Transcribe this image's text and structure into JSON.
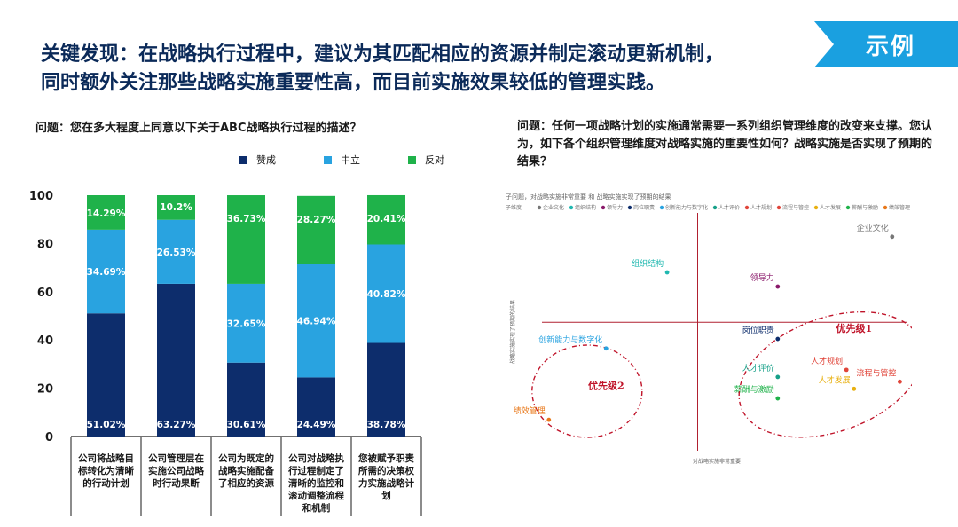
{
  "header": {
    "headline_line1": "关键发现：在战略执行过程中，建议为其匹配相应的资源并制定滚动更新机制，",
    "headline_line2": "同时额外关注那些战略实施重要性高，而目前实施效果较低的管理实践。",
    "badge": "示例",
    "badge_color": "#1aa0e0"
  },
  "left": {
    "question": "问题：您在多大程度上同意以下关于ABC战略执行过程的描述？"
  },
  "right": {
    "question": "问题：任何一项战略计划的实施通常需要一系列组织管理维度的改变来支撑。您认为，如下各个组织管理维度对战略实施的重要性如何？战略实施是否实现了预期的结果？"
  },
  "chart_data": [
    {
      "type": "bar",
      "stacked": true,
      "ylim": [
        0,
        100
      ],
      "yticks": [
        0,
        20,
        40,
        60,
        80,
        100
      ],
      "legend_position": "top",
      "categories": [
        [
          "公司将战略目",
          "标转化为清晰",
          "的行动计划"
        ],
        [
          "公司管理层在",
          "实施公司战略",
          "时行动果断"
        ],
        [
          "公司为既定的",
          "战略实施配备",
          "了相应的资源"
        ],
        [
          "公司对战略执",
          "行过程制定了",
          "清晰的监控和",
          "滚动调整流程",
          "和机制"
        ],
        [
          "您被赋予职责",
          "所需的决策权",
          "力实施战略计",
          "划"
        ]
      ],
      "series": [
        {
          "name": "赞成",
          "color": "#0d2d6c",
          "values": [
            51.02,
            63.27,
            30.61,
            24.49,
            38.78
          ],
          "labels": [
            "51.02%",
            "63.27%",
            "30.61%",
            "24.49%",
            "38.78%"
          ]
        },
        {
          "name": "中立",
          "color": "#29a3e0",
          "values": [
            34.69,
            26.53,
            32.65,
            46.94,
            40.82
          ],
          "labels": [
            "34.69%",
            "26.53%",
            "32.65%",
            "46.94%",
            "40.82%"
          ]
        },
        {
          "name": "反对",
          "color": "#1fb24a",
          "values": [
            14.29,
            10.2,
            36.73,
            28.27,
            20.41
          ],
          "labels": [
            "14.29%",
            "10.2%",
            "36.73%",
            "28.27%",
            "20.41%"
          ]
        }
      ]
    },
    {
      "type": "scatter",
      "title": "子问题，对战略实施非常重要 和 战略实施实现了预期的结果",
      "legend_prefix": "子维度",
      "xlabel": "对战略实施非常重要",
      "ylabel": "战略实施实现了预期的结果",
      "xlim": [
        0,
        10
      ],
      "ylim": [
        0,
        10
      ],
      "divider": {
        "x": 4.5,
        "y": 5.4
      },
      "points": [
        {
          "label": "企业文化",
          "x": 9.6,
          "y": 9.0,
          "color": "#777777"
        },
        {
          "label": "组织结构",
          "x": 3.7,
          "y": 7.5,
          "color": "#20b8b0"
        },
        {
          "label": "领导力",
          "x": 6.6,
          "y": 6.9,
          "color": "#8a1a6a"
        },
        {
          "label": "岗位职责",
          "x": 6.6,
          "y": 4.7,
          "color": "#0d2d6c"
        },
        {
          "label": "创新能力与数字化",
          "x": 2.1,
          "y": 4.3,
          "color": "#29a3e0"
        },
        {
          "label": "人才评价",
          "x": 6.6,
          "y": 3.1,
          "color": "#16a088"
        },
        {
          "label": "人才规划",
          "x": 8.4,
          "y": 3.4,
          "color": "#e0453a"
        },
        {
          "label": "流程与管控",
          "x": 9.8,
          "y": 2.9,
          "color": "#e0453a"
        },
        {
          "label": "人才发展",
          "x": 8.6,
          "y": 2.6,
          "color": "#e8b010"
        },
        {
          "label": "薪酬与激励",
          "x": 6.6,
          "y": 2.2,
          "color": "#1fb24a"
        },
        {
          "label": "绩效管理",
          "x": 0.6,
          "y": 1.3,
          "color": "#e8781a"
        }
      ],
      "annotations": [
        {
          "label": "优先级1",
          "x": 8.6,
          "y": 5.0,
          "color": "#c0142a"
        },
        {
          "label": "优先级2",
          "x": 2.1,
          "y": 2.6,
          "color": "#c0142a"
        }
      ]
    }
  ]
}
